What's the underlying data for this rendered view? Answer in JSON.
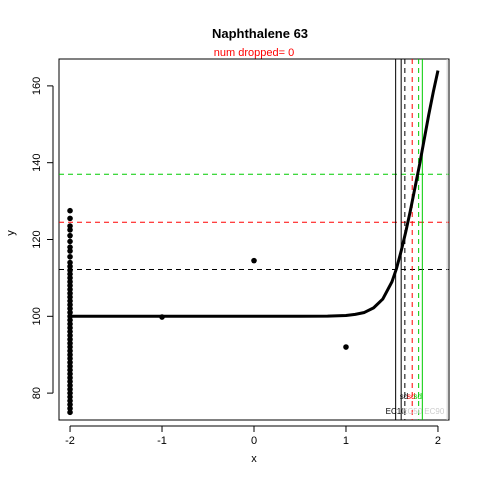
{
  "chart_data": {
    "type": "scatter",
    "title": "Naphthalene 63",
    "subtitle": "num dropped= 0",
    "xlabel": "x",
    "ylabel": "y",
    "xlim": [
      -2.12,
      2.12
    ],
    "ylim": [
      73,
      167
    ],
    "x_ticks": [
      -2,
      -1,
      0,
      1,
      2
    ],
    "y_ticks": [
      80,
      100,
      120,
      140,
      160
    ],
    "grid": false,
    "points": [
      {
        "x": -2,
        "y": 127.5
      },
      {
        "x": -2,
        "y": 125.5
      },
      {
        "x": -2,
        "y": 123.5
      },
      {
        "x": -2,
        "y": 122.5
      },
      {
        "x": -2,
        "y": 121.0
      },
      {
        "x": -2,
        "y": 119.5
      },
      {
        "x": -2,
        "y": 118.0
      },
      {
        "x": -2,
        "y": 117.0
      },
      {
        "x": -2,
        "y": 115.5
      },
      {
        "x": -2,
        "y": 114.0
      },
      {
        "x": -2,
        "y": 113.0
      },
      {
        "x": -2,
        "y": 112.0
      },
      {
        "x": -2,
        "y": 111.0
      },
      {
        "x": -2,
        "y": 110.0
      },
      {
        "x": -2,
        "y": 109.0
      },
      {
        "x": -2,
        "y": 108.0
      },
      {
        "x": -2,
        "y": 107.0
      },
      {
        "x": -2,
        "y": 106.0
      },
      {
        "x": -2,
        "y": 105.0
      },
      {
        "x": -2,
        "y": 104.0
      },
      {
        "x": -2,
        "y": 103.0
      },
      {
        "x": -2,
        "y": 102.0
      },
      {
        "x": -2,
        "y": 101.0
      },
      {
        "x": -2,
        "y": 100.0
      },
      {
        "x": -2,
        "y": 99.0
      },
      {
        "x": -2,
        "y": 98.0
      },
      {
        "x": -2,
        "y": 97.0
      },
      {
        "x": -2,
        "y": 96.0
      },
      {
        "x": -2,
        "y": 95.0
      },
      {
        "x": -2,
        "y": 94.0
      },
      {
        "x": -2,
        "y": 93.0
      },
      {
        "x": -2,
        "y": 92.0
      },
      {
        "x": -2,
        "y": 91.0
      },
      {
        "x": -2,
        "y": 90.0
      },
      {
        "x": -2,
        "y": 89.0
      },
      {
        "x": -2,
        "y": 88.0
      },
      {
        "x": -2,
        "y": 87.0
      },
      {
        "x": -2,
        "y": 86.0
      },
      {
        "x": -2,
        "y": 85.0
      },
      {
        "x": -2,
        "y": 84.0
      },
      {
        "x": -2,
        "y": 83.0
      },
      {
        "x": -2,
        "y": 82.0
      },
      {
        "x": -2,
        "y": 81.0
      },
      {
        "x": -2,
        "y": 80.0
      },
      {
        "x": -2,
        "y": 79.0
      },
      {
        "x": -2,
        "y": 78.0
      },
      {
        "x": -2,
        "y": 77.0
      },
      {
        "x": -2,
        "y": 76.0
      },
      {
        "x": -2,
        "y": 75.0
      },
      {
        "x": -1,
        "y": 99.8
      },
      {
        "x": 0,
        "y": 114.5
      },
      {
        "x": 1,
        "y": 92.0
      }
    ],
    "fitted_curve": {
      "baseline": 100,
      "x": [
        -2.0,
        -1.5,
        -1.0,
        -0.5,
        0.0,
        0.5,
        0.8,
        1.0,
        1.1,
        1.2,
        1.3,
        1.4,
        1.5,
        1.55,
        1.6,
        1.65,
        1.7,
        1.75,
        1.8,
        1.85,
        1.9,
        1.95,
        2.0
      ],
      "y": [
        100,
        100,
        100,
        100,
        100,
        100,
        100.05,
        100.2,
        100.5,
        101.0,
        102.2,
        104.5,
        109.0,
        112.5,
        117.0,
        122.0,
        127.5,
        133.5,
        139.5,
        146.0,
        152.5,
        158.5,
        164.0
      ]
    },
    "hlines": [
      {
        "y": 112.2,
        "color": "#000000",
        "style": "dashed"
      },
      {
        "y": 124.5,
        "color": "#ff0000",
        "style": "dashed"
      },
      {
        "y": 137.0,
        "color": "#00cc00",
        "style": "dashed"
      }
    ],
    "vlines": [
      {
        "x": 1.54,
        "color": "#000000",
        "style": "solid"
      },
      {
        "x": 1.6,
        "color": "#000000",
        "style": "solid"
      },
      {
        "x": 1.64,
        "color": "#000000",
        "style": "dashed"
      },
      {
        "x": 1.72,
        "color": "#ff0000",
        "style": "dashed"
      },
      {
        "x": 1.79,
        "color": "#00cc00",
        "style": "dashed"
      },
      {
        "x": 1.83,
        "color": "#00cc00",
        "style": "solid"
      },
      {
        "x": 2.1,
        "color": "#cccccc",
        "style": "solid"
      }
    ],
    "annotations": [
      {
        "text": "sd",
        "x": 1.63,
        "y": 78.5,
        "color": "#000000"
      },
      {
        "text": "sd",
        "x": 1.71,
        "y": 78.5,
        "color": "#ff0000"
      },
      {
        "text": "sd",
        "x": 1.78,
        "y": 78.5,
        "color": "#00cc00"
      },
      {
        "text": "EC10",
        "x": 1.54,
        "y": 74.5,
        "color": "#000000"
      },
      {
        "text": "EC50",
        "x": 1.72,
        "y": 74.5,
        "color": "#cccccc"
      },
      {
        "text": "EC90",
        "x": 1.96,
        "y": 74.5,
        "color": "#cccccc"
      }
    ]
  }
}
